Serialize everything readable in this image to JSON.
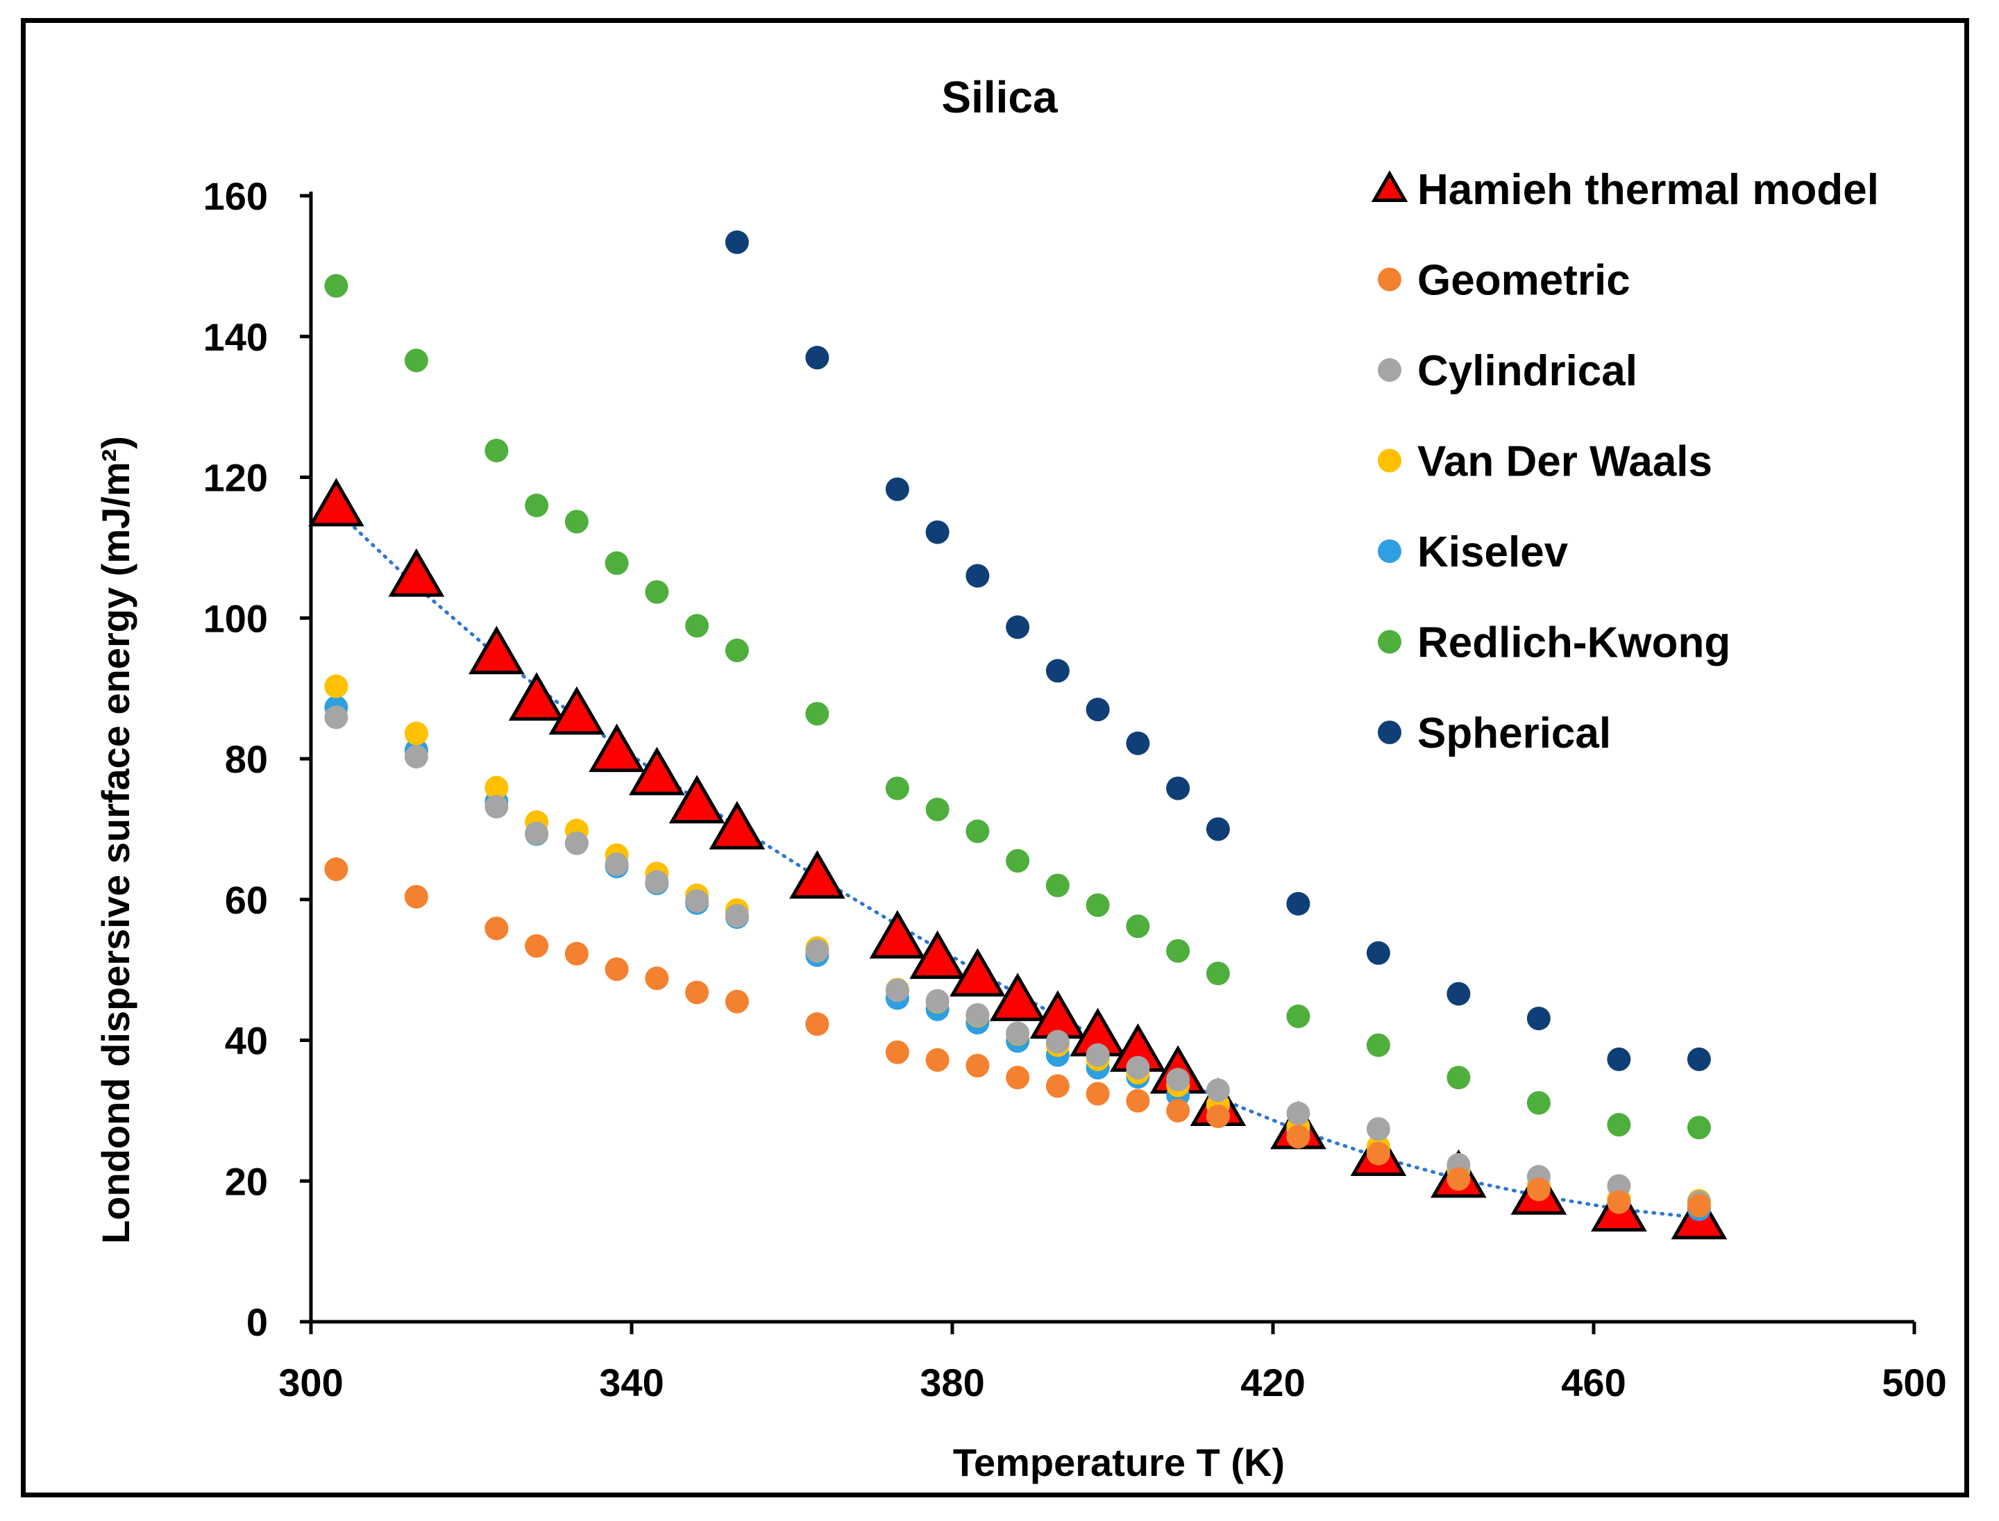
{
  "chart_data": {
    "type": "scatter",
    "title": "Silica",
    "xlabel": "Temperature T (K)",
    "ylabel": "Londond dispersive surface energy (mJ/m²)",
    "xlim": [
      300,
      500
    ],
    "ylim": [
      0,
      160
    ],
    "x_ticks": [
      "300",
      "340",
      "380",
      "420",
      "460",
      "500"
    ],
    "y_ticks": [
      "0",
      "20",
      "40",
      "60",
      "80",
      "100",
      "120",
      "140",
      "160"
    ],
    "grid": false,
    "legend_position": "top-right",
    "trendline": {
      "series": "Hamieh thermal model",
      "style": "dotted",
      "color": "#2E75D6",
      "x": [
        303.15,
        313.15,
        323.15,
        333.15,
        343.15,
        353.15,
        363.15,
        373.15,
        383.15,
        393.15,
        403.15,
        413.15,
        423.15,
        433.15,
        443.15,
        453.15,
        463.15,
        473.15
      ],
      "y": [
        115.3,
        104.5,
        94.7,
        85.9,
        78.0,
        70.4,
        63.2,
        56.4,
        49.8,
        43.4,
        37.4,
        31.8,
        27.2,
        23.4,
        20.3,
        17.9,
        16.0,
        14.8
      ]
    },
    "series": [
      {
        "name": "Hamieh thermal model",
        "marker": "triangle",
        "color": "#FF0000",
        "x": [
          303.15,
          313.15,
          323.15,
          328.15,
          333.15,
          338.15,
          343.15,
          348.15,
          353.15,
          363.15,
          373.15,
          378.15,
          383.15,
          388.15,
          393.15,
          398.15,
          403.15,
          408.15,
          413.15,
          423.15,
          433.15,
          443.15,
          453.15,
          463.15,
          473.15
        ],
        "y": [
          115.6,
          105.6,
          94.6,
          88.0,
          86.0,
          80.7,
          77.4,
          73.4,
          69.7,
          62.7,
          54.2,
          51.3,
          48.8,
          45.3,
          42.8,
          40.3,
          38.1,
          35.0,
          30.4,
          27.1,
          23.3,
          20.2,
          17.8,
          15.4,
          14.3
        ]
      },
      {
        "name": "Geometric",
        "marker": "circle",
        "color": "#F4812F",
        "x": [
          303.15,
          313.15,
          323.15,
          328.15,
          333.15,
          338.15,
          343.15,
          348.15,
          353.15,
          363.15,
          373.15,
          378.15,
          383.15,
          388.15,
          393.15,
          398.15,
          403.15,
          408.15,
          413.15,
          423.15,
          433.15,
          443.15,
          453.15,
          463.15,
          473.15
        ],
        "y": [
          64.3,
          60.4,
          55.9,
          53.4,
          52.3,
          50.1,
          48.8,
          46.8,
          45.5,
          42.3,
          38.3,
          37.2,
          36.4,
          34.7,
          33.5,
          32.4,
          31.4,
          30.0,
          29.2,
          26.3,
          23.9,
          20.3,
          18.8,
          17.0,
          16.5
        ]
      },
      {
        "name": "Cylindrical",
        "marker": "circle",
        "color": "#A5A5A5",
        "x": [
          303.15,
          313.15,
          323.15,
          328.15,
          333.15,
          338.15,
          343.15,
          348.15,
          353.15,
          363.15,
          373.15,
          378.15,
          383.15,
          388.15,
          393.15,
          398.15,
          403.15,
          408.15,
          413.15,
          423.15,
          433.15,
          443.15,
          453.15,
          463.15,
          473.15
        ],
        "y": [
          85.9,
          80.3,
          73.2,
          69.4,
          68.0,
          65.0,
          62.5,
          59.8,
          57.7,
          52.7,
          47.1,
          45.6,
          43.6,
          41.0,
          39.8,
          37.9,
          36.1,
          34.4,
          32.9,
          29.6,
          27.4,
          22.3,
          20.6,
          19.3,
          17.0
        ]
      },
      {
        "name": "Van Der Waals",
        "marker": "circle",
        "color": "#FFC000",
        "x": [
          303.15,
          313.15,
          323.15,
          328.15,
          333.15,
          338.15,
          343.15,
          348.15,
          353.15,
          363.15,
          373.15,
          378.15,
          383.15,
          388.15,
          393.15,
          398.15,
          403.15,
          408.15,
          413.15,
          423.15,
          433.15,
          443.15,
          453.15,
          463.15,
          473.15
        ],
        "y": [
          90.3,
          83.6,
          75.9,
          71.0,
          69.8,
          66.3,
          63.7,
          60.6,
          58.5,
          53.1,
          47.2,
          45.5,
          43.5,
          40.9,
          39.3,
          37.3,
          35.4,
          33.6,
          30.9,
          27.7,
          24.9,
          21.8,
          19.4,
          17.5,
          17.2
        ]
      },
      {
        "name": "Kiselev",
        "marker": "circle",
        "color": "#2E9FE0",
        "x": [
          303.15,
          313.15,
          323.15,
          328.15,
          333.15,
          338.15,
          343.15,
          348.15,
          353.15,
          363.15,
          373.15,
          378.15,
          383.15,
          388.15,
          393.15,
          398.15,
          403.15,
          408.15,
          413.15,
          423.15,
          433.15,
          443.15,
          453.15,
          463.15,
          473.15
        ],
        "y": [
          87.3,
          81.2,
          73.9,
          69.3,
          68.0,
          64.7,
          62.3,
          59.5,
          57.5,
          52.1,
          46.0,
          44.4,
          42.5,
          39.9,
          37.9,
          36.1,
          34.8,
          32.2,
          30.6,
          27.0,
          24.4,
          21.4,
          19.3,
          17.3,
          16.0
        ]
      },
      {
        "name": "Redlich-Kwong",
        "marker": "circle",
        "color": "#4EAF3C",
        "x": [
          303.15,
          313.15,
          323.15,
          328.15,
          333.15,
          338.15,
          343.15,
          348.15,
          353.15,
          363.15,
          373.15,
          378.15,
          383.15,
          388.15,
          393.15,
          398.15,
          403.15,
          408.15,
          413.15,
          423.15,
          433.15,
          443.15,
          453.15,
          463.15,
          473.15
        ],
        "y": [
          147.2,
          136.6,
          123.8,
          116.0,
          113.7,
          107.8,
          103.7,
          98.9,
          95.4,
          86.4,
          75.8,
          72.8,
          69.7,
          65.5,
          62.0,
          59.2,
          56.2,
          52.7,
          49.5,
          43.4,
          39.3,
          34.7,
          31.1,
          28.0,
          27.6
        ]
      },
      {
        "name": "Spherical",
        "marker": "circle",
        "color": "#0F3F76",
        "x": [
          353.15,
          363.15,
          373.15,
          378.15,
          383.15,
          388.15,
          393.15,
          398.15,
          403.15,
          408.15,
          413.15,
          423.15,
          433.15,
          443.15,
          453.15,
          463.15,
          473.15
        ],
        "y": [
          153.4,
          137.0,
          118.3,
          112.2,
          106.0,
          98.7,
          92.5,
          87.0,
          82.2,
          75.8,
          70.0,
          59.4,
          52.4,
          46.6,
          43.1,
          37.3,
          37.3
        ]
      }
    ]
  }
}
